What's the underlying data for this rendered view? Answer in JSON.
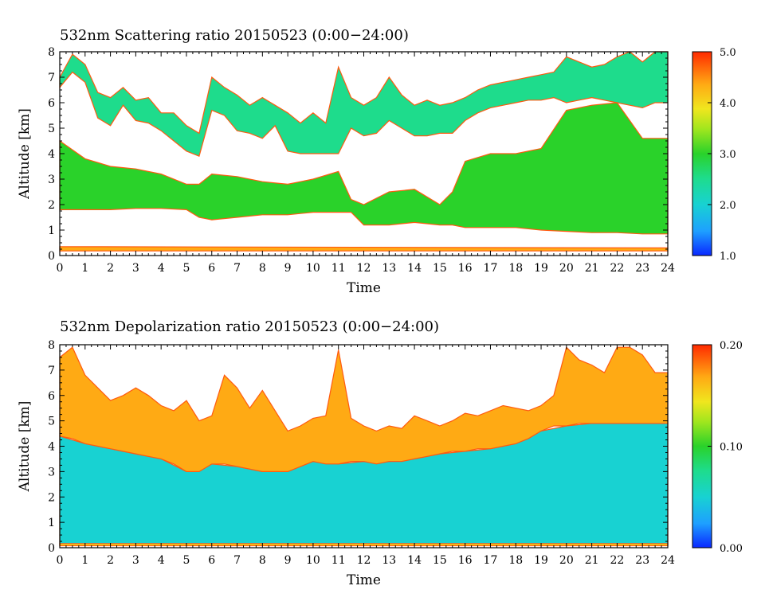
{
  "chart_data": [
    {
      "type": "heatmap",
      "title": "532nm Scattering ratio  20150523 (0:00−24:00)",
      "xlabel": "Time",
      "ylabel": "Altitude [km]",
      "xlim": [
        0,
        24
      ],
      "ylim": [
        0,
        8
      ],
      "x_ticks": [
        "0",
        "1",
        "2",
        "3",
        "4",
        "5",
        "6",
        "7",
        "8",
        "9",
        "10",
        "11",
        "12",
        "13",
        "14",
        "15",
        "16",
        "17",
        "18",
        "19",
        "20",
        "21",
        "22",
        "23",
        "24"
      ],
      "y_ticks": [
        "0",
        "1",
        "2",
        "3",
        "4",
        "5",
        "6",
        "7",
        "8"
      ],
      "colorbar": {
        "range": [
          1.0,
          5.0
        ],
        "ticks": [
          "1.0",
          "2.0",
          "3.0",
          "4.0",
          "5.0"
        ]
      },
      "layers": [
        {
          "name": "aerosol-layer",
          "time": [
            0,
            1,
            2,
            3,
            4,
            5,
            5.5,
            6,
            7,
            8,
            9,
            10,
            11,
            11.5,
            12,
            13,
            14,
            15,
            15.5,
            16,
            17,
            18,
            19,
            20,
            21,
            22,
            23,
            24
          ],
          "base": [
            1.8,
            1.8,
            1.8,
            1.85,
            1.85,
            1.8,
            1.5,
            1.4,
            1.5,
            1.6,
            1.6,
            1.7,
            1.7,
            1.7,
            1.2,
            1.2,
            1.3,
            1.2,
            1.2,
            1.1,
            1.1,
            1.1,
            1.0,
            0.95,
            0.9,
            0.9,
            0.85,
            0.85
          ],
          "top": [
            4.5,
            3.8,
            3.5,
            3.4,
            3.2,
            2.8,
            2.8,
            3.2,
            3.1,
            2.9,
            2.8,
            3.0,
            3.3,
            2.2,
            2.0,
            2.5,
            2.6,
            2.0,
            2.5,
            3.7,
            4.0,
            4.0,
            4.2,
            5.7,
            5.9,
            6.0,
            4.6,
            4.6
          ],
          "value": 3.0
        },
        {
          "name": "cloud-layer",
          "time": [
            0,
            0.5,
            1,
            1.5,
            2,
            2.5,
            3,
            3.5,
            4,
            4.5,
            5,
            5.5,
            6,
            6.5,
            7,
            7.5,
            8,
            8.5,
            9,
            9.5,
            10,
            10.5,
            11,
            11.5,
            12,
            12.5,
            13,
            13.5,
            14,
            14.5,
            15,
            15.5,
            16,
            16.5,
            17,
            17.5,
            18,
            18.5,
            19,
            19.5,
            20,
            20.5,
            21,
            21.5,
            22,
            22.5,
            23,
            23.5,
            24
          ],
          "base": [
            6.6,
            7.2,
            6.8,
            5.4,
            5.1,
            5.9,
            5.3,
            5.2,
            4.9,
            4.5,
            4.1,
            3.9,
            5.7,
            5.5,
            4.9,
            4.8,
            4.6,
            5.1,
            4.1,
            4.0,
            4.0,
            4.0,
            4.0,
            5.0,
            4.7,
            4.8,
            5.3,
            5.0,
            4.7,
            4.7,
            4.8,
            4.8,
            5.3,
            5.6,
            5.8,
            5.9,
            6.0,
            6.1,
            6.1,
            6.2,
            6.0,
            6.1,
            6.2,
            6.1,
            6.0,
            5.9,
            5.8,
            6.0,
            6.0
          ],
          "top": [
            7.0,
            7.9,
            7.5,
            6.4,
            6.2,
            6.6,
            6.1,
            6.2,
            5.6,
            5.6,
            5.1,
            4.8,
            7.0,
            6.6,
            6.3,
            5.9,
            6.2,
            5.9,
            5.6,
            5.2,
            5.6,
            5.2,
            7.4,
            6.2,
            5.9,
            6.2,
            7.0,
            6.3,
            5.9,
            6.1,
            5.9,
            6.0,
            6.2,
            6.5,
            6.7,
            6.8,
            6.9,
            7.0,
            7.1,
            7.2,
            7.8,
            7.6,
            7.4,
            7.5,
            7.8,
            8.0,
            7.6,
            8.0,
            8.0
          ],
          "value": 2.3
        },
        {
          "name": "surface-layer",
          "time": [
            0,
            24
          ],
          "base": [
            0.18,
            0.18
          ],
          "top": [
            0.35,
            0.3
          ],
          "value": 4.5
        }
      ]
    },
    {
      "type": "heatmap",
      "title": "532nm Depolarization ratio  20150523 (0:00−24:00)",
      "xlabel": "Time",
      "ylabel": "Altitude [km]",
      "xlim": [
        0,
        24
      ],
      "ylim": [
        0,
        8
      ],
      "x_ticks": [
        "0",
        "1",
        "2",
        "3",
        "4",
        "5",
        "6",
        "7",
        "8",
        "9",
        "10",
        "11",
        "12",
        "13",
        "14",
        "15",
        "16",
        "17",
        "18",
        "19",
        "20",
        "21",
        "22",
        "23",
        "24"
      ],
      "y_ticks": [
        "0",
        "1",
        "2",
        "3",
        "4",
        "5",
        "6",
        "7",
        "8"
      ],
      "colorbar": {
        "range": [
          0.0,
          0.2
        ],
        "ticks": [
          "0.00",
          "0.10",
          "0.20"
        ]
      },
      "layers": [
        {
          "name": "lower-layer",
          "time": [
            0,
            1,
            2,
            3,
            4,
            5,
            6,
            7,
            8,
            9,
            10,
            11,
            12,
            13,
            14,
            15,
            16,
            17,
            18,
            19,
            20,
            21,
            22,
            23,
            24
          ],
          "base": [
            0.1,
            0.1,
            0.1,
            0.1,
            0.1,
            0.1,
            0.1,
            0.1,
            0.1,
            0.1,
            0.1,
            0.1,
            0.1,
            0.1,
            0.1,
            0.1,
            0.1,
            0.1,
            0.1,
            0.1,
            0.1,
            0.1,
            0.1,
            0.1,
            0.1
          ],
          "top": [
            4.4,
            4.1,
            3.9,
            3.7,
            3.5,
            3.0,
            3.3,
            3.2,
            3.0,
            3.0,
            3.4,
            3.3,
            3.4,
            3.4,
            3.5,
            3.7,
            3.8,
            3.9,
            4.1,
            4.6,
            4.8,
            4.9,
            4.9,
            4.9,
            4.9
          ],
          "value": 0.05
        },
        {
          "name": "elevated-layer",
          "time": [
            0,
            0.5,
            1,
            1.5,
            2,
            2.5,
            3,
            3.5,
            4,
            4.5,
            5,
            5.5,
            6,
            6.5,
            7,
            7.5,
            8,
            8.5,
            9,
            9.5,
            10,
            10.5,
            11,
            11.5,
            12,
            12.5,
            13,
            13.5,
            14,
            14.5,
            15,
            15.5,
            16,
            16.5,
            17,
            17.5,
            18,
            18.5,
            19,
            19.5,
            20,
            20.5,
            21,
            21.5,
            22,
            22.5,
            23,
            23.5,
            24
          ],
          "base": [
            4.4,
            4.3,
            4.1,
            4.0,
            3.9,
            3.8,
            3.7,
            3.6,
            3.5,
            3.3,
            3.0,
            3.0,
            3.3,
            3.3,
            3.2,
            3.1,
            3.0,
            3.0,
            3.0,
            3.2,
            3.4,
            3.3,
            3.3,
            3.4,
            3.4,
            3.3,
            3.4,
            3.4,
            3.5,
            3.6,
            3.7,
            3.8,
            3.8,
            3.9,
            3.9,
            4.0,
            4.1,
            4.3,
            4.6,
            4.8,
            4.8,
            4.9,
            4.9,
            4.9,
            4.9,
            4.9,
            4.9,
            4.9,
            4.9
          ],
          "top": [
            7.5,
            7.9,
            6.8,
            6.3,
            5.8,
            6.0,
            6.3,
            6.0,
            5.6,
            5.4,
            5.8,
            5.0,
            5.2,
            6.8,
            6.3,
            5.5,
            6.2,
            5.4,
            4.6,
            4.8,
            5.1,
            5.2,
            7.8,
            5.1,
            4.8,
            4.6,
            4.8,
            4.7,
            5.2,
            5.0,
            4.8,
            5.0,
            5.3,
            5.2,
            5.4,
            5.6,
            5.5,
            5.4,
            5.6,
            6.0,
            7.9,
            7.4,
            7.2,
            6.9,
            7.9,
            7.9,
            7.6,
            6.9,
            6.9
          ],
          "value": 0.17
        },
        {
          "name": "surface-layer",
          "time": [
            0,
            24
          ],
          "base": [
            0.08,
            0.08
          ],
          "top": [
            0.16,
            0.16
          ],
          "value": 0.14
        }
      ]
    }
  ]
}
